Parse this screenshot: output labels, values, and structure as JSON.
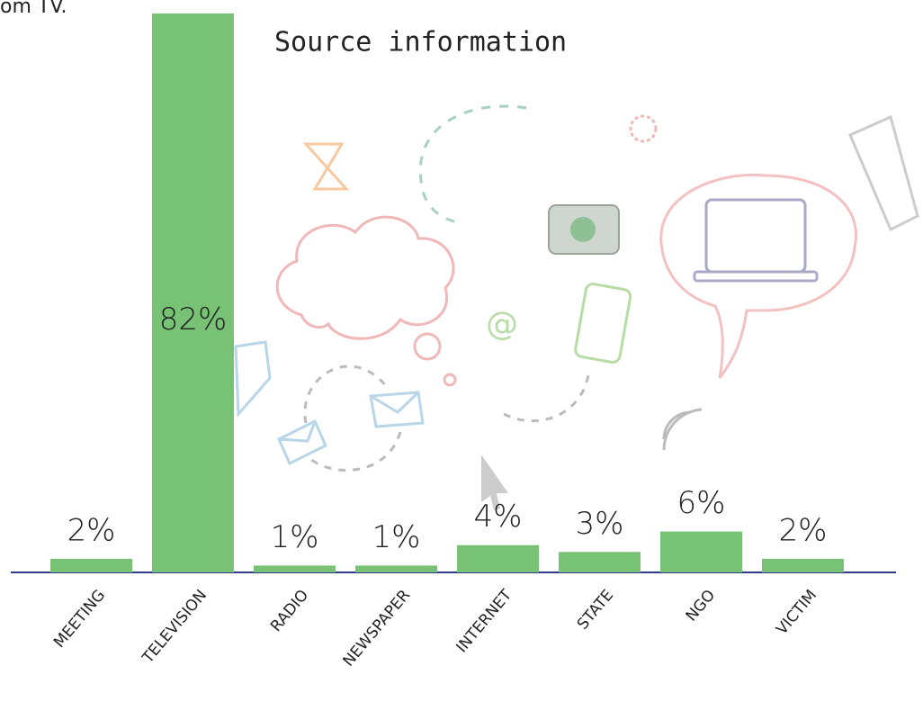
{
  "caption": "om TV.",
  "chart_data": {
    "type": "bar",
    "title": "Source information",
    "categories": [
      "MEETING",
      "TELEVISION",
      "RADIO",
      "NEWSPAPER",
      "INTERNET",
      "STATE",
      "NGO",
      "VICTIM"
    ],
    "values": [
      2,
      82,
      1,
      1,
      4,
      3,
      6,
      2
    ],
    "value_labels": [
      "2%",
      "82%",
      "1%",
      "1%",
      "4%",
      "3%",
      "6%",
      "2%"
    ],
    "color": "#77c275",
    "baseline_color": "#2e3a8c"
  }
}
